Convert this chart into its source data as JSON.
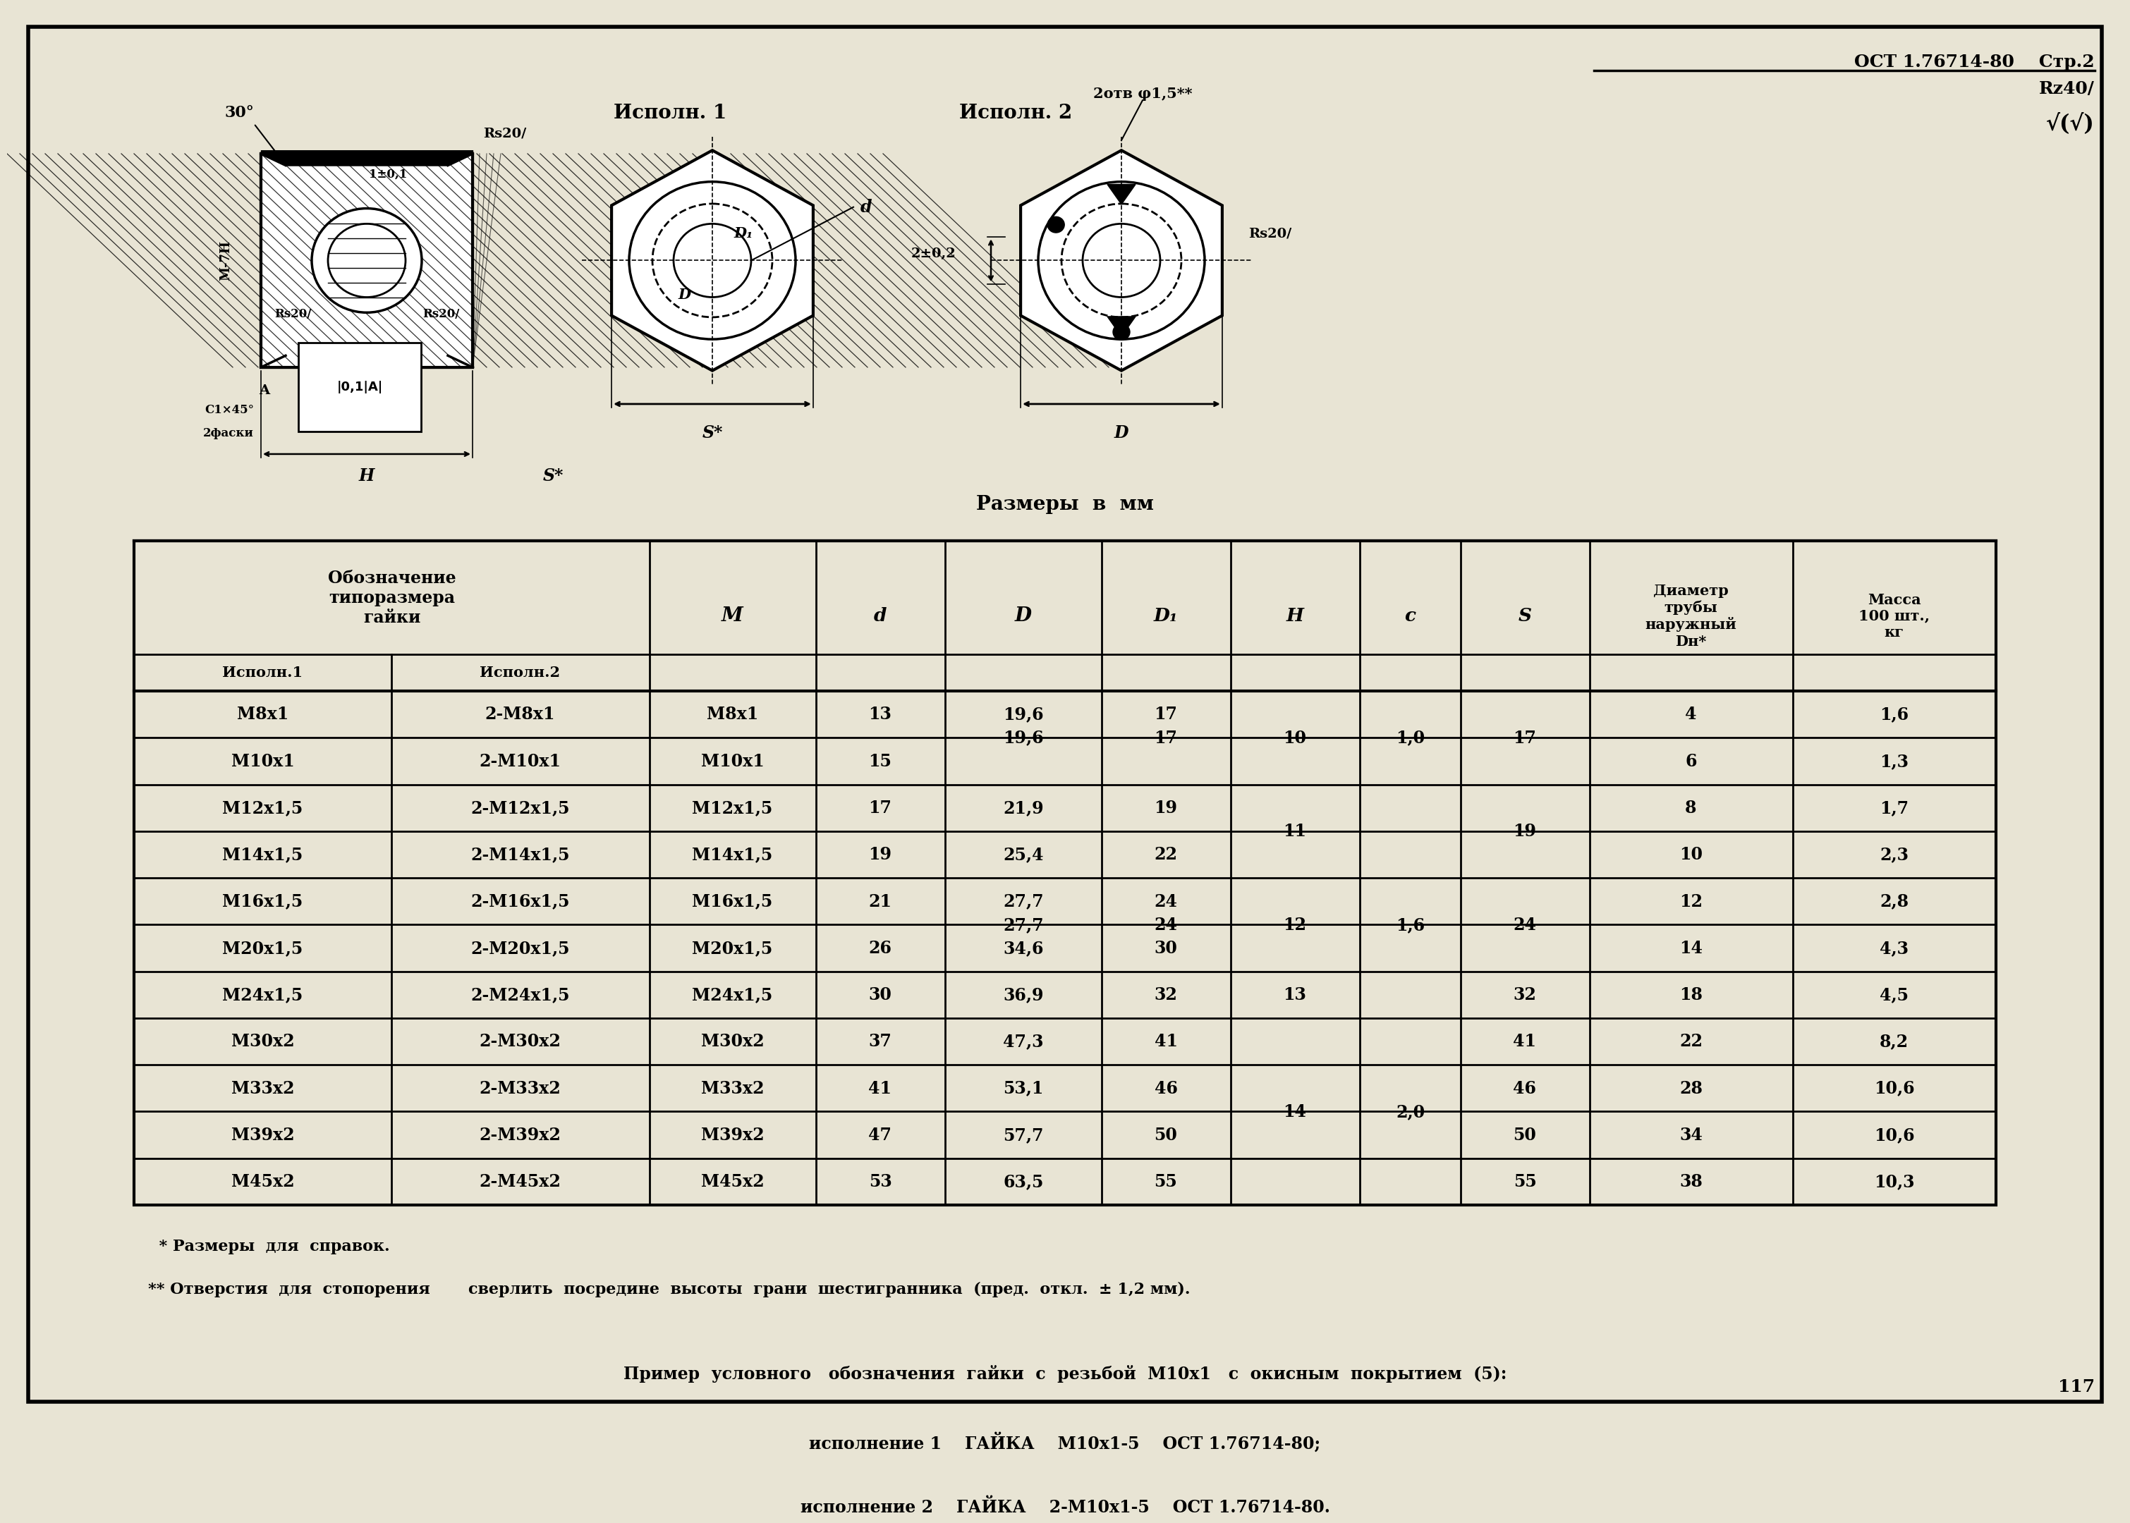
{
  "title_right": "ОСТ 1.76714-80    Стр.2",
  "ispoln1_label": "Исполн. 1",
  "ispoln2_label": "Исполн. 2",
  "table_title": "Размеры  в  мм",
  "header_ispoln1": "Исполн.1",
  "header_ispoln2": "Исполн.2",
  "col_headers": [
    "М",
    "d",
    "D",
    "D₁",
    "H",
    "c",
    "S",
    "Диаметр\nтрубы\nнаружный\nDн*",
    "Масса\n100 шт.,\nкг"
  ],
  "footnote1": "  * Размеры  для  справок.",
  "footnote2": "** Отверстия  для  стопорения       сверлить  посредине  высоты  грани  шестигранника  (пред.  откл.  ± 1,2 мм).",
  "example_line0": "Пример  условного   обозначения  гайки  с  резьбой  М10х1   с  окисным  покрытием  (5):",
  "example_line1": "исполнение 1    ГАЙКА    М10х1-5    ОСТ 1.76714-80;",
  "example_line2": "исполнение 2    ГАЙКА    2-М10х1-5    ОСТ 1.76714-80.",
  "page_number": "117",
  "bg_color": "#e8e4d4"
}
